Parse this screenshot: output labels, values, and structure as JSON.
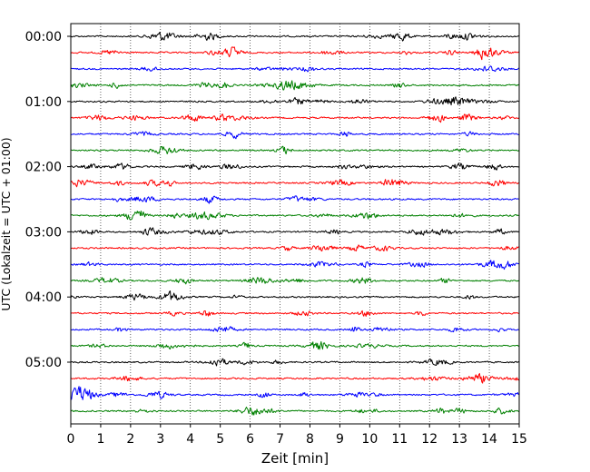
{
  "chart_data": {
    "type": "line",
    "title": "",
    "xlabel": "Zeit  [min]",
    "ylabel": "UTC (Lokalzeit = UTC + 01:00)",
    "xlim": [
      0,
      15
    ],
    "x_ticks": [
      "0",
      "1",
      "2",
      "3",
      "4",
      "5",
      "6",
      "7",
      "8",
      "9",
      "10",
      "11",
      "12",
      "13",
      "14",
      "15"
    ],
    "y_tick_labels": [
      "00:00",
      "01:00",
      "02:00",
      "03:00",
      "04:00",
      "05:00"
    ],
    "trace_interval_min": 15,
    "trace_count": 24,
    "trace_colors": [
      "#000000",
      "#ff0000",
      "#0000ff",
      "#008000"
    ],
    "grid": "vertical-dotted",
    "legend": "none"
  }
}
